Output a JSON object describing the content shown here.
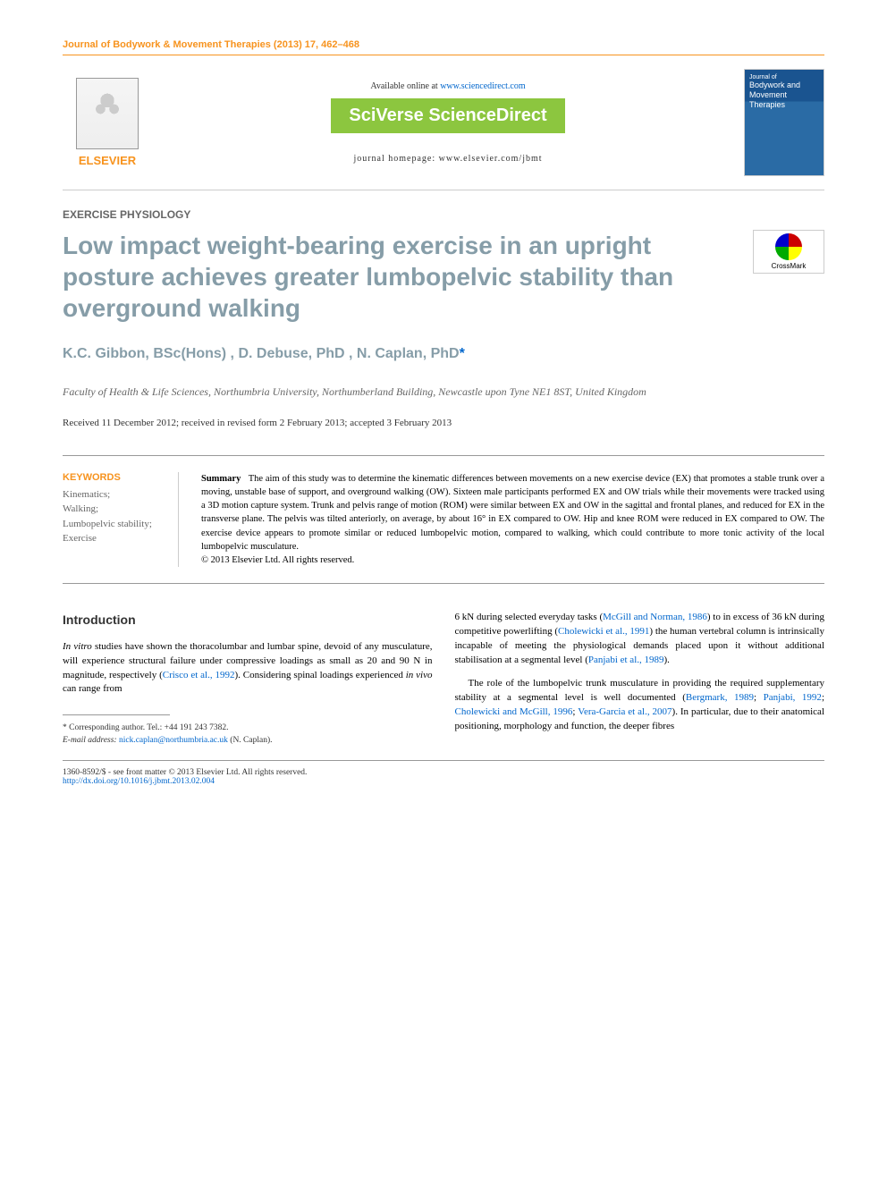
{
  "header": {
    "citation": "Journal of Bodywork & Movement Therapies (2013) 17, 462–468"
  },
  "top": {
    "elsevier": "ELSEVIER",
    "available": "Available online at ",
    "sd_url": "www.sciencedirect.com",
    "sciverse": "SciVerse ScienceDirect",
    "homepage_label": "journal homepage: ",
    "homepage_url": "www.elsevier.com/jbmt",
    "cover_journal": "Journal of",
    "cover_title": "Bodywork and Movement Therapies"
  },
  "section": "EXERCISE PHYSIOLOGY",
  "title": "Low impact weight-bearing exercise in an upright posture achieves greater lumbopelvic stability than overground walking",
  "crossmark": "CrossMark",
  "authors": "K.C. Gibbon, BSc(Hons) , D. Debuse, PhD , N. Caplan, PhD",
  "asterisk": "*",
  "affiliation": "Faculty of Health & Life Sciences, Northumbria University, Northumberland Building, Newcastle upon Tyne NE1 8ST, United Kingdom",
  "dates": "Received 11 December 2012; received in revised form 2 February 2013; accepted 3 February 2013",
  "keywords": {
    "title": "KEYWORDS",
    "list": "Kinematics;\nWalking;\nLumbopelvic stability;\nExercise"
  },
  "summary": {
    "label": "Summary",
    "text": "The aim of this study was to determine the kinematic differences between movements on a new exercise device (EX) that promotes a stable trunk over a moving, unstable base of support, and overground walking (OW). Sixteen male participants performed EX and OW trials while their movements were tracked using a 3D motion capture system. Trunk and pelvis range of motion (ROM) were similar between EX and OW in the sagittal and frontal planes, and reduced for EX in the transverse plane. The pelvis was tilted anteriorly, on average, by about 16° in EX compared to OW. Hip and knee ROM were reduced in EX compared to OW. The exercise device appears to promote similar or reduced lumbopelvic motion, compared to walking, which could contribute to more tonic activity of the local lumbopelvic musculature.",
    "copyright": "© 2013 Elsevier Ltd. All rights reserved."
  },
  "intro": {
    "heading": "Introduction",
    "p1a": "In vitro",
    "p1b": " studies have shown the thoracolumbar and lumbar spine, devoid of any musculature, will experience structural failure under compressive loadings as small as 20 and 90 N in magnitude, respectively (",
    "c1": "Crisco et al., 1992",
    "p1c": "). Considering spinal loadings experienced ",
    "p1d": "in vivo",
    "p1e": " can range from",
    "p2a": "6 kN during selected everyday tasks (",
    "c2": "McGill and Norman, 1986",
    "p2b": ") to in excess of 36 kN during competitive powerlifting (",
    "c3": "Cholewicki et al., 1991",
    "p2c": ") the human vertebral column is intrinsically incapable of meeting the physiological demands placed upon it without additional stabilisation at a segmental level (",
    "c4": "Panjabi et al., 1989",
    "p2d": ").",
    "p3a": "The role of the lumbopelvic trunk musculature in providing the required supplementary stability at a segmental level is well documented (",
    "c5": "Bergmark, 1989",
    "p3b": "; ",
    "c6": "Panjabi, 1992",
    "p3c": "; ",
    "c7": "Cholewicki and McGill, 1996",
    "p3d": "; ",
    "c8": "Vera-Garcia et al., 2007",
    "p3e": "). In particular, due to their anatomical positioning, morphology and function, the deeper fibres"
  },
  "corresponding": {
    "label": "* Corresponding author. Tel.: +44 191 243 7382.",
    "email_label": "E-mail address:",
    "email": "nick.caplan@northumbria.ac.uk",
    "name": " (N. Caplan)."
  },
  "footer": {
    "issn": "1360-8592/$ - see front matter © 2013 Elsevier Ltd. All rights reserved.",
    "doi": "http://dx.doi.org/10.1016/j.jbmt.2013.02.004"
  }
}
